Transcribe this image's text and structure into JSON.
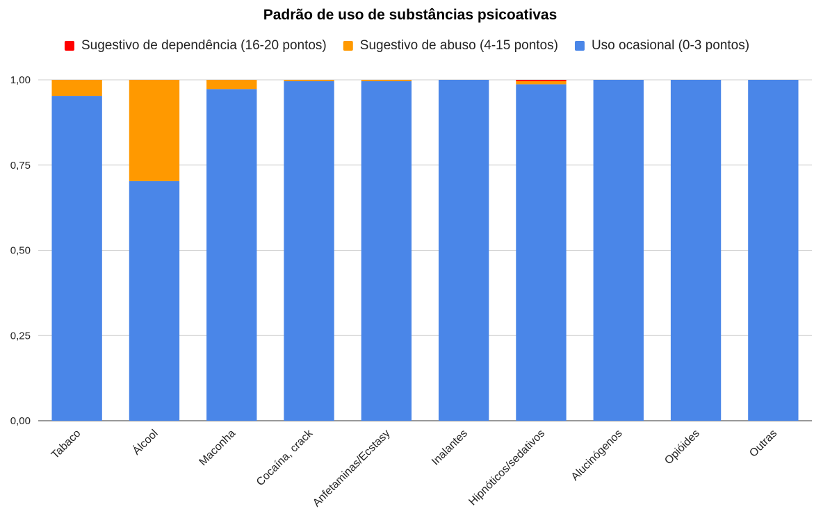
{
  "chart_data": {
    "type": "bar",
    "stacked": true,
    "title": "Padrão de uso de substâncias psicoativas",
    "xlabel": "",
    "ylabel": "",
    "ylim": [
      0,
      1
    ],
    "yticks": [
      {
        "value": 0,
        "label": "0,00"
      },
      {
        "value": 0.25,
        "label": "0,25"
      },
      {
        "value": 0.5,
        "label": "0,50"
      },
      {
        "value": 0.75,
        "label": "0,75"
      },
      {
        "value": 1,
        "label": "1,00"
      }
    ],
    "grid": true,
    "legend_position": "top",
    "categories": [
      "Tabaco",
      "Álcool",
      "Maconha",
      "Cocaína, crack",
      "Anfetaminas/Ecstasy",
      "Inalantes",
      "Hipnóticos/sedativos",
      "Alucinógenos",
      "Opióides",
      "Outras"
    ],
    "series": [
      {
        "name": "Uso ocasional (0-3 pontos)",
        "color": "#4a86e8",
        "values": [
          0.953,
          0.703,
          0.973,
          0.996,
          0.996,
          1.0,
          0.987,
          1.0,
          1.0,
          1.0
        ]
      },
      {
        "name": "Sugestivo de abuso (4-15 pontos)",
        "color": "#ff9900",
        "values": [
          0.047,
          0.297,
          0.027,
          0.004,
          0.004,
          0.0,
          0.009,
          0.0,
          0.0,
          0.0
        ]
      },
      {
        "name": "Sugestivo de dependência (16-20 pontos)",
        "color": "#ff0000",
        "values": [
          0.0,
          0.0,
          0.0,
          0.0,
          0.0,
          0.0,
          0.004,
          0.0,
          0.0,
          0.0
        ]
      }
    ],
    "legend_order": [
      2,
      1,
      0
    ]
  }
}
